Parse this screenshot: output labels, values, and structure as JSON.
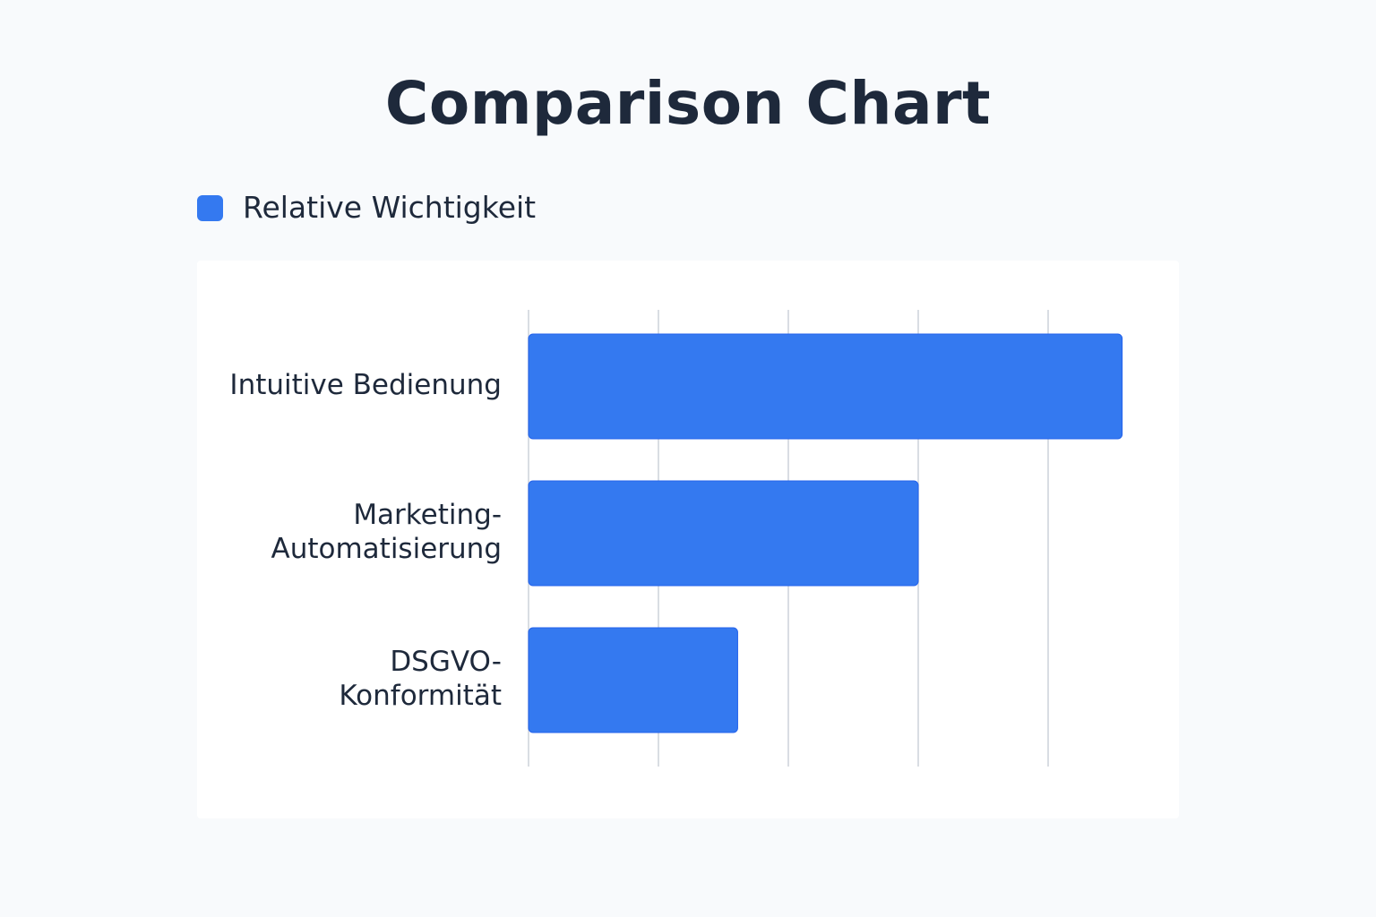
{
  "chart_data": {
    "type": "bar",
    "orientation": "horizontal",
    "title": "Comparison Chart",
    "categories": [
      "Intuitive Bedienung",
      "Marketing-Automatisierung",
      "DSGVO-Konformität"
    ],
    "category_label_lines": [
      [
        "Intuitive Bedienung"
      ],
      [
        "Marketing-",
        "Automatisierung"
      ],
      [
        "DSGVO-",
        "Konformität"
      ]
    ],
    "series": [
      {
        "name": "Relative Wichtigkeit",
        "values": [
          4.57,
          3.0,
          1.61
        ],
        "color": "#3479f0"
      }
    ],
    "xlim": [
      0,
      5
    ],
    "xticks": [
      0,
      1,
      2,
      3,
      4
    ],
    "tick_labels_shown": false,
    "grid": "vertical",
    "legend": "top-left",
    "xlabel": "",
    "ylabel": ""
  }
}
